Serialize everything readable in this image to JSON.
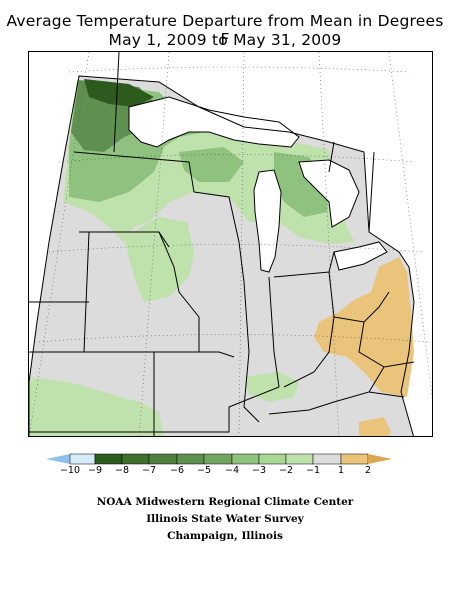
{
  "title": {
    "line1": "Average Temperature Departure from Mean in Degrees F",
    "line2": "May 1, 2009 to May 31, 2009"
  },
  "legend": {
    "ticks": [
      "−10",
      "−9",
      "−8",
      "−7",
      "−6",
      "−5",
      "−4",
      "−3",
      "−2",
      "−1",
      "1",
      "2"
    ],
    "colors": {
      "below_10": "#8ec0ec",
      "m10_m9": "#d4ecf8",
      "m9_m8": "#2d5a1d",
      "m8_m7": "#3f6e2e",
      "m7_m6": "#4f8040",
      "m6_m5": "#5f904f",
      "m5_m4": "#72a562",
      "m4_m3": "#8ec27e",
      "m3_m2": "#a9d596",
      "m2_m1": "#bfe2ad",
      "m1_p1": "#dcdcdc",
      "p1_p2": "#eac47a",
      "above_2": "#dca550"
    }
  },
  "credits": {
    "line1": "NOAA Midwestern Regional Climate Center",
    "line2": "Illinois State Water Survey",
    "line3": "Champaign, Illinois"
  },
  "map_colors": {
    "lake": "#ffffff",
    "neutral": "#dcdcdc",
    "light_green": "#bfe2ad",
    "mid_green": "#8ec27e",
    "dark_green": "#5f904f",
    "darkest_green": "#2d5a1d",
    "warm": "#eac47a"
  }
}
